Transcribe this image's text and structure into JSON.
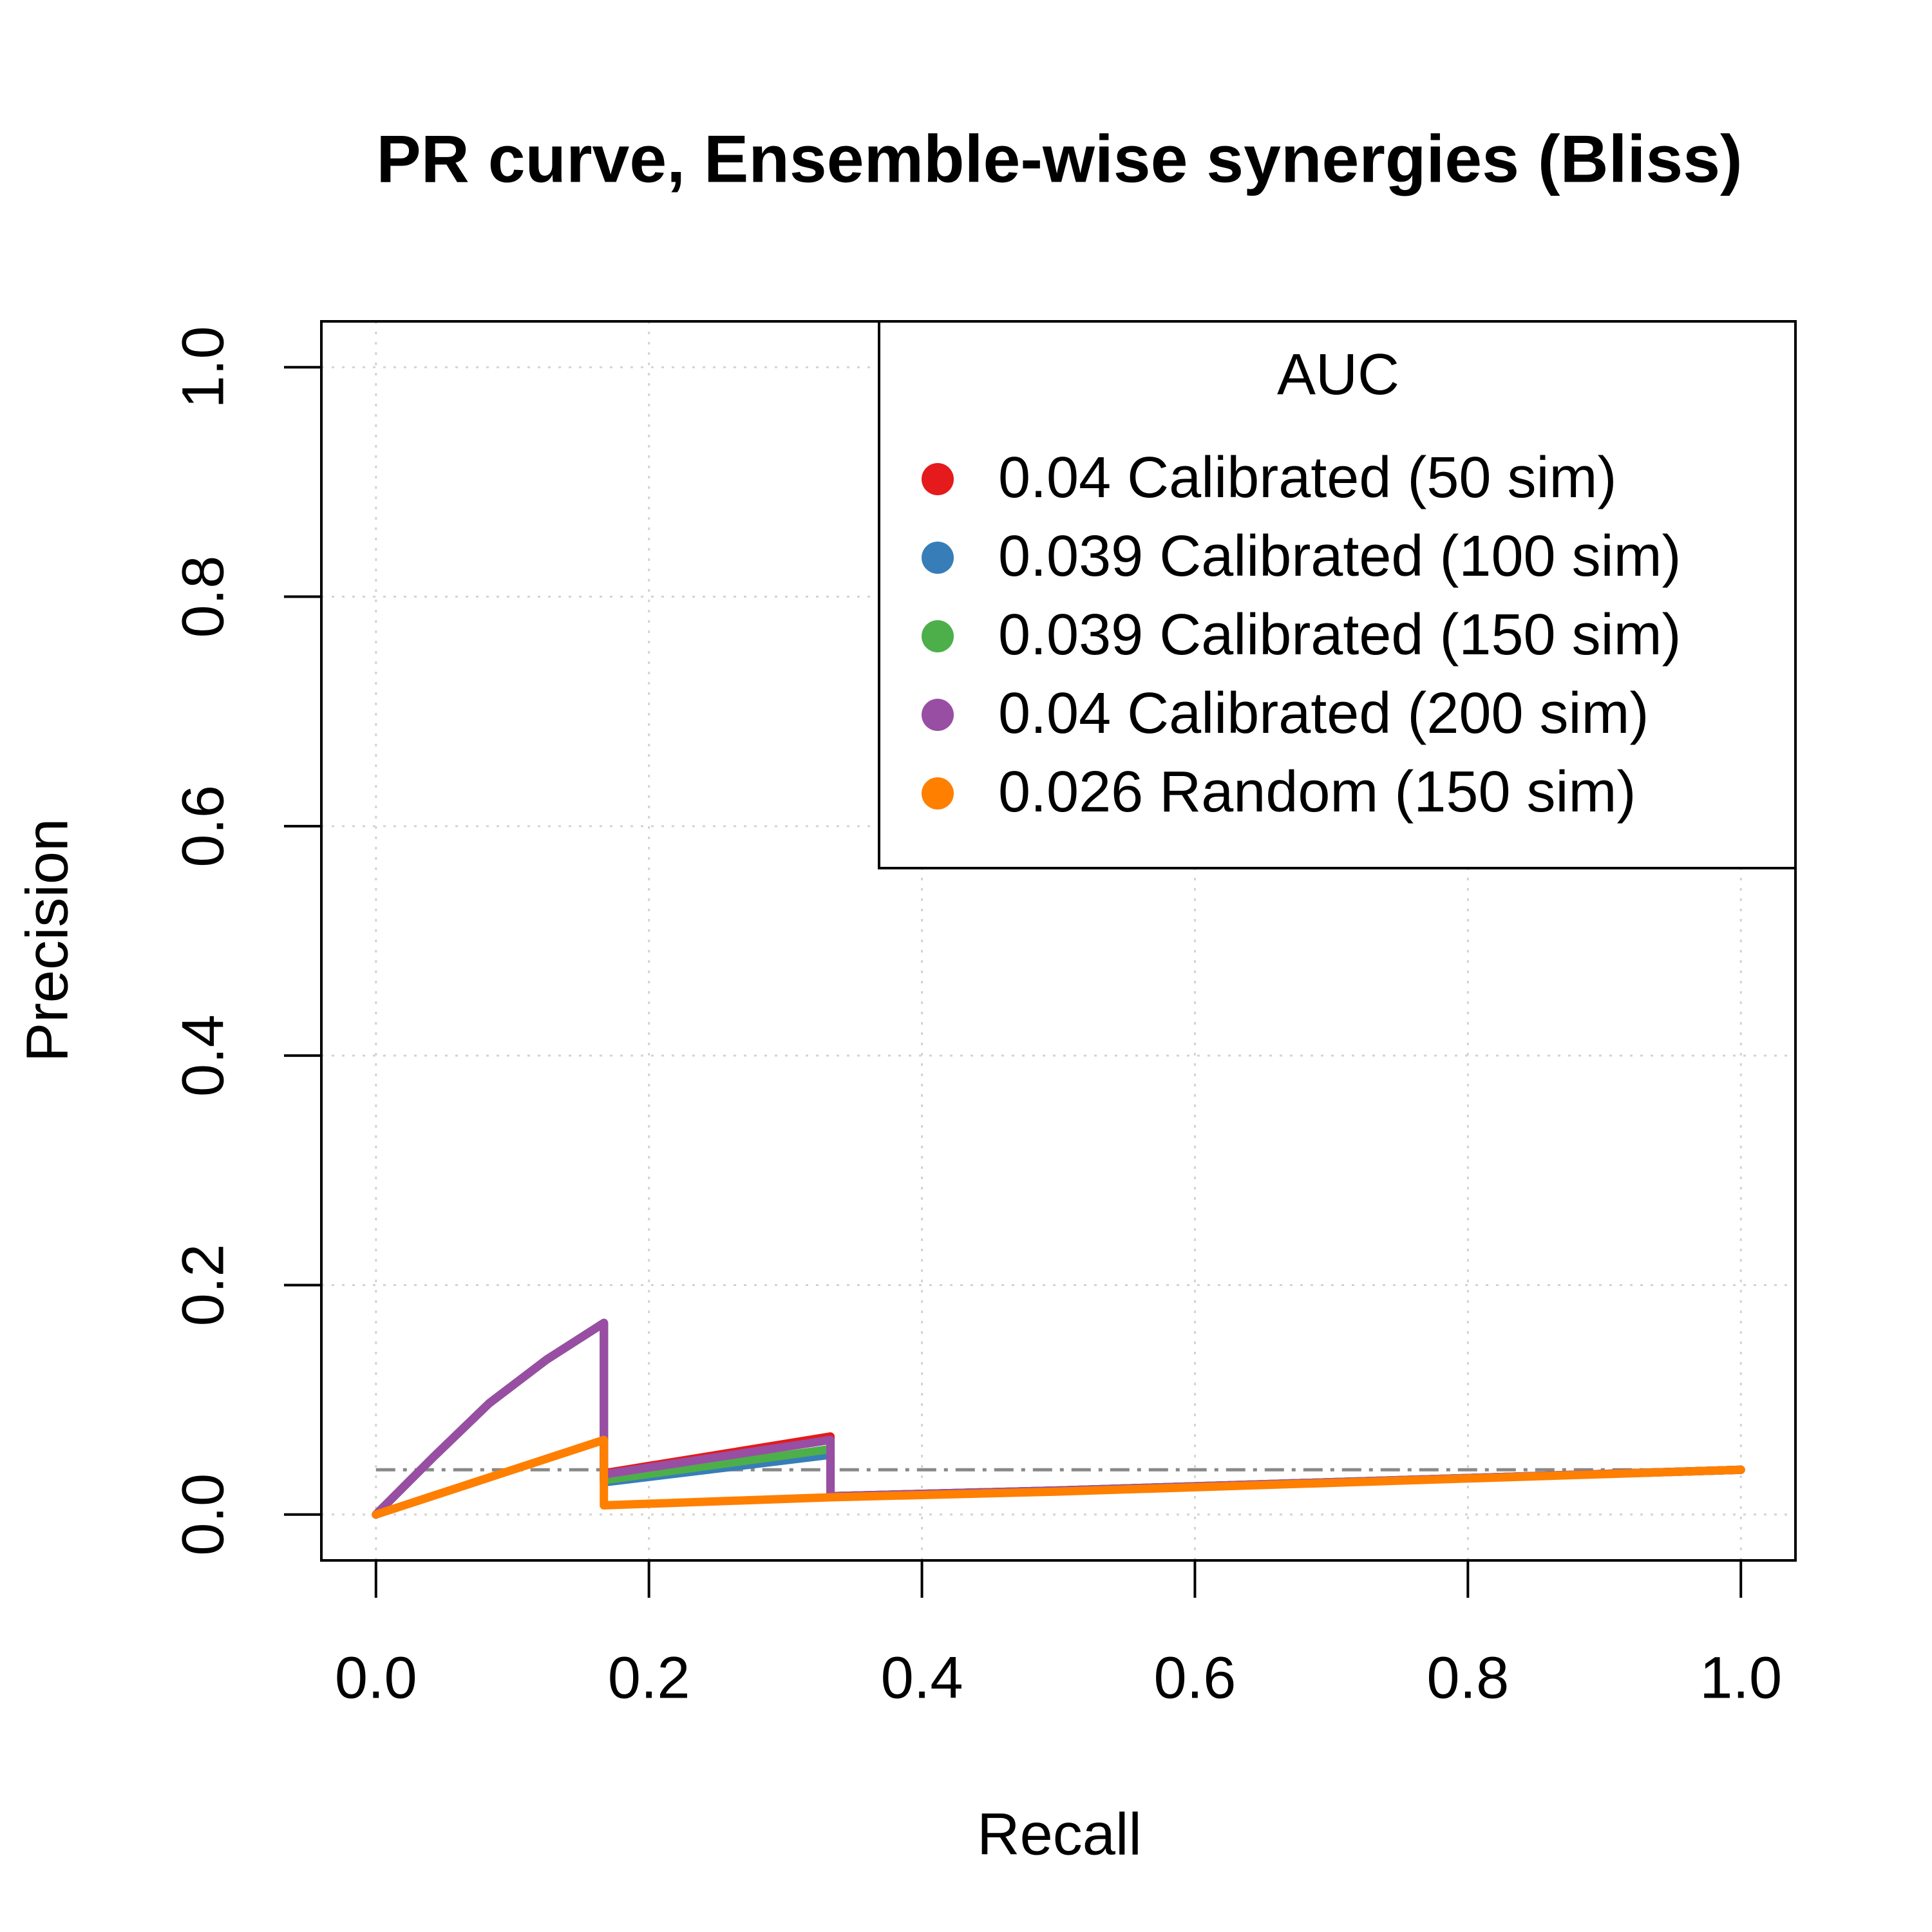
{
  "chart_data": {
    "type": "line",
    "title": "PR curve, Ensemble-wise synergies (Bliss)",
    "xlabel": "Recall",
    "ylabel": "Precision",
    "legend_title": "AUC",
    "legend": "topright",
    "xlim": [
      -0.04,
      1.04
    ],
    "ylim": [
      -0.04,
      1.04
    ],
    "xticks": [
      {
        "value": 0,
        "label": "0.0"
      },
      {
        "value": 0.2,
        "label": "0.2"
      },
      {
        "value": 0.4,
        "label": "0.4"
      },
      {
        "value": 0.6,
        "label": "0.6"
      },
      {
        "value": 0.8,
        "label": "0.8"
      },
      {
        "value": 1,
        "label": "1.0"
      }
    ],
    "yticks": [
      {
        "value": 0,
        "label": "0.0"
      },
      {
        "value": 0.2,
        "label": "0.2"
      },
      {
        "value": 0.4,
        "label": "0.4"
      },
      {
        "value": 0.6,
        "label": "0.6"
      },
      {
        "value": 0.8,
        "label": "0.8"
      },
      {
        "value": 1,
        "label": "1.0"
      }
    ],
    "grid": true,
    "baseline": 0.039,
    "series": [
      {
        "name": "0.04 Calibrated (50 sim)",
        "color": "#e41a1c",
        "x": [
          0,
          0.042,
          0.083,
          0.125,
          0.167,
          0.167,
          0.333,
          0.333,
          0.5,
          1
        ],
        "values": [
          0,
          0.05,
          0.097,
          0.135,
          0.167,
          0.036,
          0.068,
          0.016,
          0.021,
          0.039
        ]
      },
      {
        "name": "0.039 Calibrated (100 sim)",
        "color": "#377eb8",
        "x": [
          0,
          0.042,
          0.083,
          0.125,
          0.167,
          0.167,
          0.333,
          0.333,
          0.5,
          1
        ],
        "values": [
          0,
          0.05,
          0.097,
          0.135,
          0.167,
          0.028,
          0.052,
          0.016,
          0.021,
          0.039
        ]
      },
      {
        "name": "0.039 Calibrated (150 sim)",
        "color": "#4daf4a",
        "x": [
          0,
          0.042,
          0.083,
          0.125,
          0.167,
          0.167,
          0.333,
          0.333,
          0.5,
          1
        ],
        "values": [
          0,
          0.05,
          0.097,
          0.135,
          0.167,
          0.03,
          0.057,
          0.016,
          0.021,
          0.039
        ]
      },
      {
        "name": "0.04 Calibrated (200 sim)",
        "color": "#984ea3",
        "x": [
          0,
          0.042,
          0.083,
          0.125,
          0.167,
          0.167,
          0.333,
          0.333,
          0.5,
          1
        ],
        "values": [
          0,
          0.05,
          0.097,
          0.135,
          0.167,
          0.035,
          0.065,
          0.016,
          0.021,
          0.039
        ]
      },
      {
        "name": "0.026 Random (150 sim)",
        "color": "#ff7f00",
        "x": [
          0,
          0.167,
          0.167,
          0.333,
          0.5,
          1
        ],
        "values": [
          0,
          0.065,
          0.008,
          0.015,
          0.02,
          0.039
        ]
      }
    ]
  }
}
